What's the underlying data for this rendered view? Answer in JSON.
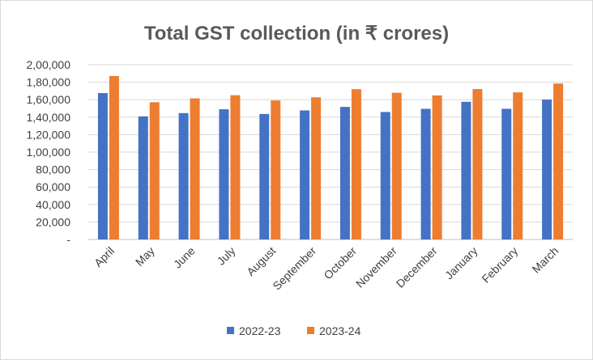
{
  "chart_data": {
    "type": "bar",
    "title": "Total GST collection (in ₹ crores)",
    "xlabel": "",
    "ylabel": "",
    "categories": [
      "April",
      "May",
      "June",
      "July",
      "August",
      "September",
      "October",
      "November",
      "December",
      "January",
      "February",
      "March"
    ],
    "series": [
      {
        "name": "2022-23",
        "color": "#4472c4",
        "values": [
          167540,
          140885,
          144616,
          148995,
          143612,
          147686,
          151718,
          145867,
          149507,
          157554,
          149577,
          160122
        ]
      },
      {
        "name": "2023-24",
        "color": "#ed7d31",
        "values": [
          187035,
          157090,
          161497,
          165105,
          159069,
          162712,
          172003,
          167929,
          164882,
          172129,
          168337,
          178484
        ]
      }
    ],
    "ylim": [
      0,
      200000
    ],
    "y_ticks": [
      0,
      20000,
      40000,
      60000,
      80000,
      100000,
      120000,
      140000,
      160000,
      180000,
      200000
    ],
    "y_tick_labels": [
      "-",
      "20,000",
      "40,000",
      "60,000",
      "80,000",
      "1,00,000",
      "1,20,000",
      "1,40,000",
      "1,60,000",
      "1,80,000",
      "2,00,000"
    ],
    "grid": true,
    "legend_position": "bottom"
  }
}
